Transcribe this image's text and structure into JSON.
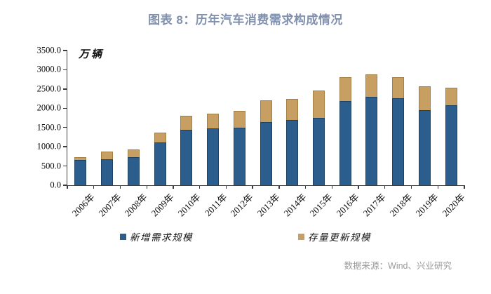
{
  "title": "图表 8：历年汽车消费需求构成情况",
  "source_note": "数据来源：Wind、兴业研究",
  "chart_data": {
    "type": "bar",
    "stacked": true,
    "title": "图表 8：历年汽车消费需求构成情况",
    "unit_label": "万辆",
    "categories": [
      "2006年",
      "2007年",
      "2008年",
      "2009年",
      "2010年",
      "2011年",
      "2012年",
      "2013年",
      "2014年",
      "2015年",
      "2016年",
      "2017年",
      "2018年",
      "2019年",
      "2020年"
    ],
    "series": [
      {
        "name": "新增需求规模",
        "color": "#2b5e8c",
        "values": [
          650,
          680,
          730,
          1120,
          1445,
          1475,
          1495,
          1640,
          1690,
          1745,
          2185,
          2290,
          2255,
          1945,
          2075
        ]
      },
      {
        "name": "存量更新规模",
        "color": "#c79f63",
        "values": [
          72,
          199,
          208,
          244,
          361,
          376,
          436,
          558,
          553,
          715,
          618,
          598,
          553,
          632,
          456
        ]
      }
    ],
    "totals": [
      722,
      879,
      938,
      1364,
      1806,
      1851,
      1931,
      2198,
      2243,
      2460,
      2803,
      2888,
      2808,
      2577,
      2531
    ],
    "ylim": [
      0,
      3500
    ],
    "ytick_step": 500,
    "ytick_labels": [
      "0.0",
      "500.0",
      "1000.0",
      "1500.0",
      "2000.0",
      "2500.0",
      "3000.0",
      "3500.0"
    ],
    "grid": false,
    "legend_position": "bottom"
  },
  "colors": {
    "new_demand": "#2b5e8c",
    "stock_renewal": "#c79f63",
    "title": "#8191ae",
    "axis": "#3c3c3c",
    "source": "#9a9a9a"
  }
}
